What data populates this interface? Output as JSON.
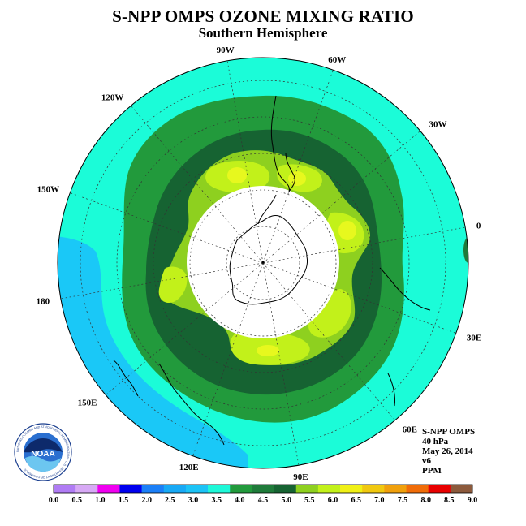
{
  "title": "S-NPP OMPS OZONE MIXING RATIO",
  "subtitle": "Southern Hemisphere",
  "longitude_labels": [
    "90W",
    "60W",
    "30W",
    "0",
    "30E",
    "60E",
    "90E",
    "120E",
    "150E",
    "180",
    "150W",
    "120W"
  ],
  "info": {
    "instrument": "S-NPP OMPS",
    "pressure": "40 hPa",
    "date": "May 26, 2014",
    "version": "v6",
    "units": "PPM"
  },
  "logo_text": "NOAA",
  "logo_ring_text": "NATIONAL OCEANIC AND ATMOSPHERIC ADMINISTRATION • U.S. DEPARTMENT OF COMMERCE",
  "legend": {
    "ticks": [
      "0.0",
      "0.5",
      "1.0",
      "1.5",
      "2.0",
      "2.5",
      "3.0",
      "3.5",
      "4.0",
      "4.5",
      "5.0",
      "5.5",
      "6.0",
      "6.5",
      "7.0",
      "7.5",
      "8.0",
      "8.5",
      "9.0"
    ],
    "colors": [
      "#b07cf4",
      "#d7a9f5",
      "#f000f0",
      "#0000ee",
      "#1b7ff7",
      "#18a9f5",
      "#1cc3f6",
      "#1ef8d8",
      "#229a3c",
      "#1f7b3a",
      "#166332",
      "#8ed01f",
      "#c2f11a",
      "#f0f016",
      "#f0c810",
      "#f0a00c",
      "#f06c08",
      "#e80000",
      "#8c5a3c"
    ]
  },
  "colors": {
    "ocean_teal": "#1bfcd8",
    "blue_low": "#18c8f8",
    "blue_lower": "#1aa8f0",
    "green_mid": "#229a3c",
    "green_dark": "#166332",
    "green_light": "#8ed01f",
    "yellow_green": "#c2f11a",
    "hole": "#ffffff"
  }
}
